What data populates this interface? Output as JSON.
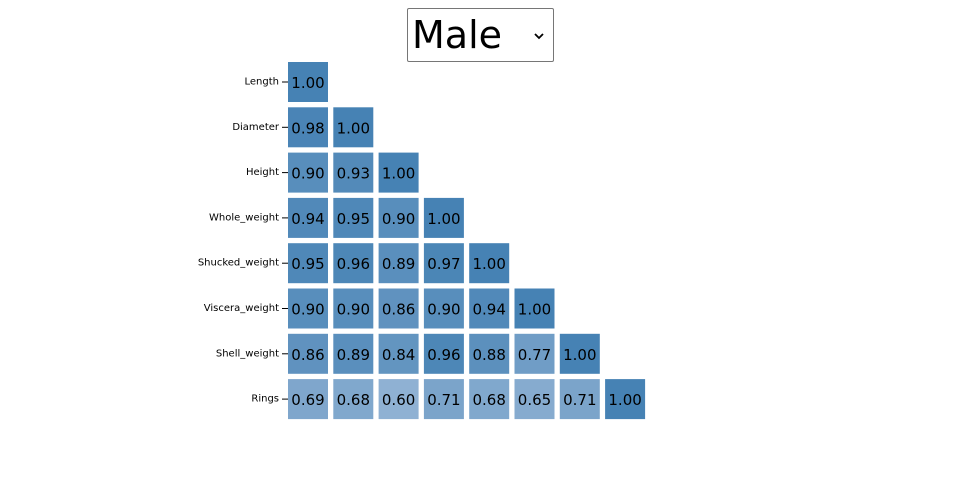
{
  "selector": {
    "value": "Male",
    "chevron_icon": "chevron-down-icon"
  },
  "chart_data": {
    "type": "heatmap",
    "layout": "lower-triangle",
    "variables": [
      "Length",
      "Diameter",
      "Height",
      "Whole_weight",
      "Shucked_weight",
      "Viscera_weight",
      "Shell_weight",
      "Rings"
    ],
    "matrix": [
      [
        1.0
      ],
      [
        0.98,
        1.0
      ],
      [
        0.9,
        0.93,
        1.0
      ],
      [
        0.94,
        0.95,
        0.9,
        1.0
      ],
      [
        0.95,
        0.96,
        0.89,
        0.97,
        1.0
      ],
      [
        0.9,
        0.9,
        0.86,
        0.9,
        0.94,
        1.0
      ],
      [
        0.86,
        0.89,
        0.84,
        0.96,
        0.88,
        0.77,
        1.0
      ],
      [
        0.69,
        0.68,
        0.6,
        0.71,
        0.68,
        0.65,
        0.71,
        1.0
      ]
    ],
    "color_low": "#8fb1d3",
    "color_high": "#4682b4",
    "value_range": [
      0.6,
      1.0
    ]
  }
}
